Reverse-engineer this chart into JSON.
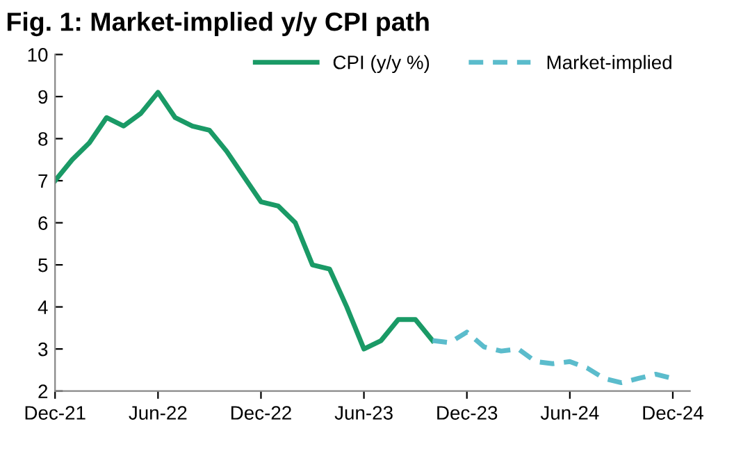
{
  "chart_data": {
    "type": "line",
    "title": "Fig. 1: Market-implied y/y CPI path",
    "series": [
      {
        "name": "CPI (y/y %)",
        "color": "#1a9a66",
        "line_style": "solid",
        "x": [
          "2021-12",
          "2022-01",
          "2022-02",
          "2022-03",
          "2022-04",
          "2022-05",
          "2022-06",
          "2022-07",
          "2022-08",
          "2022-09",
          "2022-10",
          "2022-11",
          "2022-12",
          "2023-01",
          "2023-02",
          "2023-03",
          "2023-04",
          "2023-05",
          "2023-06",
          "2023-07",
          "2023-08",
          "2023-09",
          "2023-10"
        ],
        "values": [
          7.0,
          7.5,
          7.9,
          8.5,
          8.3,
          8.6,
          9.1,
          8.5,
          8.3,
          8.2,
          7.7,
          7.1,
          6.5,
          6.4,
          6.0,
          5.0,
          4.9,
          4.0,
          3.0,
          3.2,
          3.7,
          3.7,
          3.2
        ]
      },
      {
        "name": "Market-implied",
        "color": "#5bbccc",
        "line_style": "dashed",
        "x": [
          "2023-10",
          "2023-11",
          "2023-12",
          "2024-01",
          "2024-02",
          "2024-03",
          "2024-04",
          "2024-05",
          "2024-06",
          "2024-07",
          "2024-08",
          "2024-09",
          "2024-10",
          "2024-11",
          "2024-12"
        ],
        "values": [
          3.2,
          3.15,
          3.4,
          3.05,
          2.95,
          3.0,
          2.7,
          2.65,
          2.7,
          2.55,
          2.3,
          2.2,
          2.3,
          2.4,
          2.3
        ]
      }
    ],
    "xlim": [
      "2021-12",
      "2025-01"
    ],
    "xticks": [
      {
        "value": "2021-12",
        "label": "Dec-21"
      },
      {
        "value": "2022-06",
        "label": "Jun-22"
      },
      {
        "value": "2022-12",
        "label": "Dec-22"
      },
      {
        "value": "2023-06",
        "label": "Jun-23"
      },
      {
        "value": "2023-12",
        "label": "Dec-23"
      },
      {
        "value": "2024-06",
        "label": "Jun-24"
      },
      {
        "value": "2024-12",
        "label": "Dec-24"
      }
    ],
    "ylim": [
      2,
      10
    ],
    "yticks": [
      2,
      3,
      4,
      5,
      6,
      7,
      8,
      9,
      10
    ],
    "grid": false,
    "legend": "top right"
  }
}
